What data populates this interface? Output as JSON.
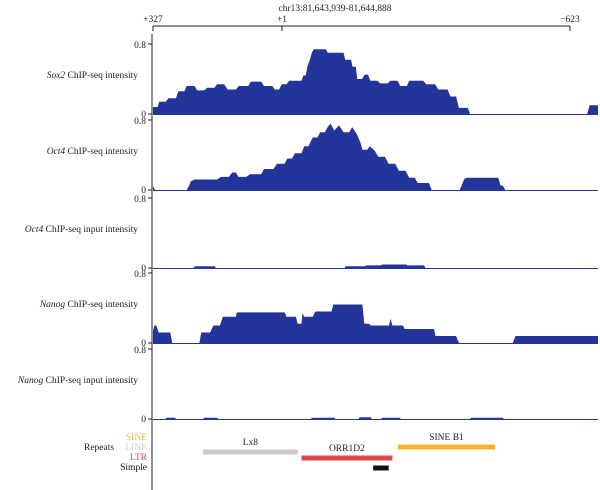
{
  "coordinate_header": {
    "region": "chr13:81,643,939-81,644,888",
    "left_label": "+327",
    "center_label": "+1",
    "right_label": "−623"
  },
  "chart_data": {
    "type": "area",
    "description_axis": "genomic position",
    "x_domain": [
      327,
      -623
    ],
    "tracks": [
      {
        "name_italic": "Sox2",
        "name_rest": " ChIP-seq intensity",
        "ytick_top": "0.8",
        "ytick_bottom": "0",
        "ylim": [
          0,
          0.8
        ],
        "color": "#23359a",
        "points": [
          [
            327,
            0.08
          ],
          [
            317,
            0.08
          ],
          [
            314,
            0.14
          ],
          [
            300,
            0.14
          ],
          [
            294,
            0.18
          ],
          [
            278,
            0.18
          ],
          [
            273,
            0.26
          ],
          [
            260,
            0.26
          ],
          [
            255,
            0.32
          ],
          [
            238,
            0.32
          ],
          [
            233,
            0.27
          ],
          [
            218,
            0.27
          ],
          [
            211,
            0.3
          ],
          [
            196,
            0.3
          ],
          [
            190,
            0.34
          ],
          [
            175,
            0.34
          ],
          [
            168,
            0.28
          ],
          [
            150,
            0.28
          ],
          [
            144,
            0.32
          ],
          [
            124,
            0.32
          ],
          [
            118,
            0.37
          ],
          [
            96,
            0.37
          ],
          [
            90,
            0.32
          ],
          [
            72,
            0.32
          ],
          [
            67,
            0.28
          ],
          [
            58,
            0.28
          ],
          [
            52,
            0.34
          ],
          [
            42,
            0.34
          ],
          [
            36,
            0.38
          ],
          [
            10,
            0.38
          ],
          [
            6,
            0.44
          ],
          [
            1,
            0.44
          ],
          [
            -3,
            0.55
          ],
          [
            -8,
            0.62
          ],
          [
            -12,
            0.7
          ],
          [
            -16,
            0.74
          ],
          [
            -42,
            0.74
          ],
          [
            -46,
            0.7
          ],
          [
            -80,
            0.7
          ],
          [
            -83,
            0.62
          ],
          [
            -96,
            0.62
          ],
          [
            -99,
            0.54
          ],
          [
            -106,
            0.54
          ],
          [
            -109,
            0.4
          ],
          [
            -119,
            0.4
          ],
          [
            -125,
            0.45
          ],
          [
            -132,
            0.45
          ],
          [
            -137,
            0.38
          ],
          [
            -152,
            0.38
          ],
          [
            -158,
            0.35
          ],
          [
            -174,
            0.35
          ],
          [
            -180,
            0.38
          ],
          [
            -195,
            0.38
          ],
          [
            -201,
            0.32
          ],
          [
            -215,
            0.32
          ],
          [
            -220,
            0.38
          ],
          [
            -250,
            0.38
          ],
          [
            -256,
            0.34
          ],
          [
            -275,
            0.34
          ],
          [
            -282,
            0.28
          ],
          [
            -302,
            0.28
          ],
          [
            -308,
            0.2
          ],
          [
            -320,
            0.2
          ],
          [
            -326,
            0.07
          ],
          [
            -345,
            0.07
          ],
          [
            -350,
            0
          ],
          [
            -600,
            0
          ],
          [
            -605,
            0.1
          ],
          [
            -623,
            0.1
          ]
        ]
      },
      {
        "name_italic": "Oct4",
        "name_rest": " ChIP-seq intensity",
        "ytick_top": "0.8",
        "ytick_bottom": "0",
        "ylim": [
          0,
          0.8
        ],
        "color": "#23359a",
        "points": [
          [
            327,
            0.05
          ],
          [
            323,
            0
          ],
          [
            255,
            0
          ],
          [
            250,
            0.05
          ],
          [
            246,
            0.1
          ],
          [
            238,
            0.12
          ],
          [
            190,
            0.12
          ],
          [
            182,
            0.15
          ],
          [
            165,
            0.15
          ],
          [
            158,
            0.2
          ],
          [
            150,
            0.2
          ],
          [
            145,
            0.15
          ],
          [
            128,
            0.15
          ],
          [
            120,
            0.18
          ],
          [
            96,
            0.18
          ],
          [
            90,
            0.24
          ],
          [
            70,
            0.24
          ],
          [
            62,
            0.3
          ],
          [
            46,
            0.3
          ],
          [
            40,
            0.36
          ],
          [
            30,
            0.36
          ],
          [
            24,
            0.42
          ],
          [
            10,
            0.42
          ],
          [
            4,
            0.5
          ],
          [
            -5,
            0.5
          ],
          [
            -10,
            0.56
          ],
          [
            -14,
            0.6
          ],
          [
            -24,
            0.6
          ],
          [
            -30,
            0.66
          ],
          [
            -40,
            0.66
          ],
          [
            -46,
            0.72
          ],
          [
            -52,
            0.76
          ],
          [
            -60,
            0.68
          ],
          [
            -70,
            0.74
          ],
          [
            -80,
            0.66
          ],
          [
            -92,
            0.66
          ],
          [
            -98,
            0.72
          ],
          [
            -108,
            0.64
          ],
          [
            -116,
            0.54
          ],
          [
            -120,
            0.46
          ],
          [
            -130,
            0.46
          ],
          [
            -136,
            0.5
          ],
          [
            -146,
            0.45
          ],
          [
            -154,
            0.38
          ],
          [
            -168,
            0.38
          ],
          [
            -176,
            0.3
          ],
          [
            -190,
            0.3
          ],
          [
            -198,
            0.22
          ],
          [
            -212,
            0.22
          ],
          [
            -220,
            0.14
          ],
          [
            -232,
            0.14
          ],
          [
            -238,
            0.08
          ],
          [
            -262,
            0.08
          ],
          [
            -268,
            0
          ],
          [
            -328,
            0
          ],
          [
            -334,
            0.08
          ],
          [
            -338,
            0.13
          ],
          [
            -344,
            0.14
          ],
          [
            -410,
            0.14
          ],
          [
            -415,
            0.05
          ],
          [
            -420,
            0.05
          ],
          [
            -425,
            0
          ],
          [
            -623,
            0
          ]
        ]
      },
      {
        "name_italic": "Oct4",
        "name_rest": " ChIP-seq input intensity",
        "ytick_top": "0.8",
        "ytick_bottom": "0",
        "ylim": [
          0,
          0.8
        ],
        "color": "#23359a",
        "points": [
          [
            327,
            0
          ],
          [
            240,
            0
          ],
          [
            238,
            0.02
          ],
          [
            195,
            0.02
          ],
          [
            193,
            0
          ],
          [
            -82,
            0
          ],
          [
            -84,
            0.02
          ],
          [
            -126,
            0.02
          ],
          [
            -128,
            0.03
          ],
          [
            -160,
            0.03
          ],
          [
            -162,
            0.04
          ],
          [
            -214,
            0.04
          ],
          [
            -216,
            0.03
          ],
          [
            -252,
            0.03
          ],
          [
            -254,
            0
          ],
          [
            -623,
            0
          ]
        ]
      },
      {
        "name_italic": "Nanog",
        "name_rest": " ChIP-seq intensity",
        "ytick_top": "0.8",
        "ytick_bottom": "0",
        "ylim": [
          0,
          0.8
        ],
        "color": "#23359a",
        "points": [
          [
            327,
            0.14
          ],
          [
            324,
            0.2
          ],
          [
            320,
            0.2
          ],
          [
            315,
            0.12
          ],
          [
            290,
            0.12
          ],
          [
            286,
            0
          ],
          [
            228,
            0
          ],
          [
            224,
            0.12
          ],
          [
            205,
            0.12
          ],
          [
            198,
            0.2
          ],
          [
            184,
            0.2
          ],
          [
            178,
            0.3
          ],
          [
            150,
            0.3
          ],
          [
            148,
            0.35
          ],
          [
            46,
            0.35
          ],
          [
            42,
            0.3
          ],
          [
            22,
            0.3
          ],
          [
            18,
            0.22
          ],
          [
            10,
            0.22
          ],
          [
            8,
            0.34
          ],
          [
            4,
            0.3
          ],
          [
            -14,
            0.3
          ],
          [
            -20,
            0.36
          ],
          [
            -54,
            0.36
          ],
          [
            -58,
            0.44
          ],
          [
            -120,
            0.44
          ],
          [
            -124,
            0.22
          ],
          [
            -134,
            0.22
          ],
          [
            -138,
            0.2
          ],
          [
            -177,
            0.2
          ],
          [
            -180,
            0.28
          ],
          [
            -184,
            0.2
          ],
          [
            -207,
            0.2
          ],
          [
            -210,
            0.16
          ],
          [
            -273,
            0.16
          ],
          [
            -276,
            0.08
          ],
          [
            -320,
            0.08
          ],
          [
            -326,
            0
          ],
          [
            -441,
            0
          ],
          [
            -447,
            0.08
          ],
          [
            -623,
            0.08
          ]
        ]
      },
      {
        "name_italic": "Nanog",
        "name_rest": " ChIP-seq input intensity",
        "ytick_top": "0.8",
        "ytick_bottom": "0",
        "ylim": [
          0,
          0.8
        ],
        "color": "#23359a",
        "points": [
          [
            327,
            0
          ],
          [
            300,
            0
          ],
          [
            298,
            0.015
          ],
          [
            280,
            0.015
          ],
          [
            278,
            0
          ],
          [
            220,
            0
          ],
          [
            218,
            0.015
          ],
          [
            190,
            0.015
          ],
          [
            188,
            0
          ],
          [
            -10,
            0
          ],
          [
            -12,
            0.015
          ],
          [
            -60,
            0.015
          ],
          [
            -62,
            0
          ],
          [
            -112,
            0
          ],
          [
            -114,
            0.02
          ],
          [
            -138,
            0.02
          ],
          [
            -140,
            0
          ],
          [
            -160,
            0
          ],
          [
            -162,
            0.015
          ],
          [
            -200,
            0.015
          ],
          [
            -202,
            0
          ],
          [
            -350,
            0
          ],
          [
            -352,
            0.015
          ],
          [
            -420,
            0.015
          ],
          [
            -422,
            0
          ],
          [
            -623,
            0
          ]
        ]
      }
    ],
    "repeats": {
      "label": "Repeats",
      "legend": [
        {
          "name": "SINE",
          "color": "#f3b233"
        },
        {
          "name": "LINE",
          "color": "#c9c9c9"
        },
        {
          "name": "LTR",
          "color": "#e0444c"
        },
        {
          "name": "Simple",
          "color": "#111111"
        }
      ],
      "features": [
        {
          "label": "Lx8",
          "type": "LINE",
          "color": "#c9c9c9",
          "start": 220,
          "end": 18
        },
        {
          "label": "ORR1D2",
          "type": "LTR",
          "color": "#e0444c",
          "start": 10,
          "end": -184
        },
        {
          "label": "SINE B1",
          "type": "SINE",
          "color": "#f3b233",
          "start": -196,
          "end": -403
        },
        {
          "label": "",
          "type": "Simple",
          "color": "#111111",
          "start": -143,
          "end": -176
        }
      ]
    }
  }
}
